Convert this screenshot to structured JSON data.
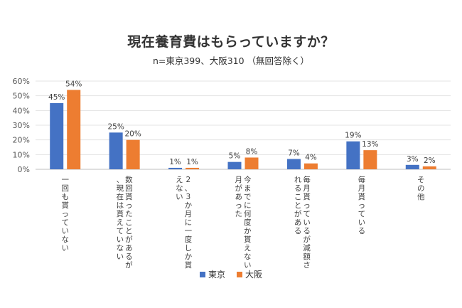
{
  "chart_data": {
    "type": "bar",
    "title": "現在養育費はもらっていますか？",
    "subtitle": "n=東京399、大阪310 （無回答除く）",
    "ylim": [
      0,
      60
    ],
    "yticks": [
      "0%",
      "10%",
      "20%",
      "30%",
      "40%",
      "50%",
      "60%"
    ],
    "grid": true,
    "legend_position": "bottom",
    "categories": [
      "一回も貰っていない",
      "数回貰ったことがあるが、現在は貰えていない",
      "2、3か月に一度しか貰えない",
      "今までに何度か貰えない月があった",
      "毎月貰っているが減額されることがある",
      "毎月貰っている",
      "その他"
    ],
    "series": [
      {
        "name": "東京",
        "color": "#4472C4",
        "values": [
          45,
          25,
          1,
          5,
          7,
          19,
          3
        ],
        "labels": [
          "45%",
          "25%",
          "1%",
          "5%",
          "7%",
          "19%",
          "3%"
        ]
      },
      {
        "name": "大阪",
        "color": "#ED7D31",
        "values": [
          54,
          20,
          1,
          8,
          4,
          13,
          2
        ],
        "labels": [
          "54%",
          "20%",
          "1%",
          "8%",
          "4%",
          "13%",
          "2%"
        ]
      }
    ]
  }
}
